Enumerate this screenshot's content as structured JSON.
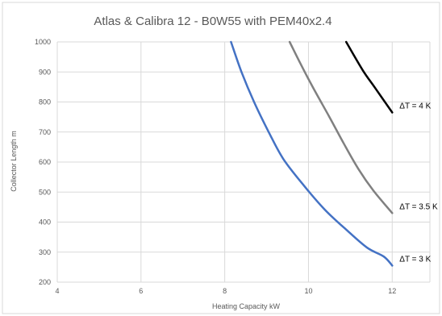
{
  "chart_data": {
    "type": "line",
    "title": "Atlas & Calibra 12 - B0W55 with PEM40x2.4",
    "xlabel": "Heating Capacity  kW",
    "ylabel": "Collector Length  m",
    "xlim": [
      4,
      12.9
    ],
    "ylim": [
      200,
      1000
    ],
    "x_ticks": [
      "4",
      "6",
      "8",
      "10",
      "12"
    ],
    "y_ticks": [
      "200",
      "300",
      "400",
      "500",
      "600",
      "700",
      "800",
      "900",
      "1000"
    ],
    "grid": "vertical-and-horizontal",
    "legend": "none (labels at line ends)",
    "series": [
      {
        "name": "ΔT = 3 K",
        "color": "#4472C4",
        "points": [
          [
            8.15,
            1000
          ],
          [
            8.4,
            900
          ],
          [
            8.7,
            800
          ],
          [
            9.05,
            700
          ],
          [
            9.4,
            610
          ],
          [
            9.9,
            520
          ],
          [
            10.4,
            440
          ],
          [
            10.9,
            375
          ],
          [
            11.4,
            315
          ],
          [
            11.8,
            285
          ],
          [
            12,
            255
          ]
        ]
      },
      {
        "name": "ΔT = 3.5 K",
        "color": "#808080",
        "points": [
          [
            9.55,
            1000
          ],
          [
            9.8,
            930
          ],
          [
            10.1,
            850
          ],
          [
            10.5,
            750
          ],
          [
            10.85,
            660
          ],
          [
            11.2,
            575
          ],
          [
            11.55,
            505
          ],
          [
            12,
            430
          ]
        ]
      },
      {
        "name": "ΔT = 4 K",
        "color": "#000000",
        "points": [
          [
            10.9,
            1000
          ],
          [
            11.3,
            905
          ],
          [
            11.6,
            845
          ],
          [
            12,
            765
          ]
        ]
      }
    ]
  }
}
